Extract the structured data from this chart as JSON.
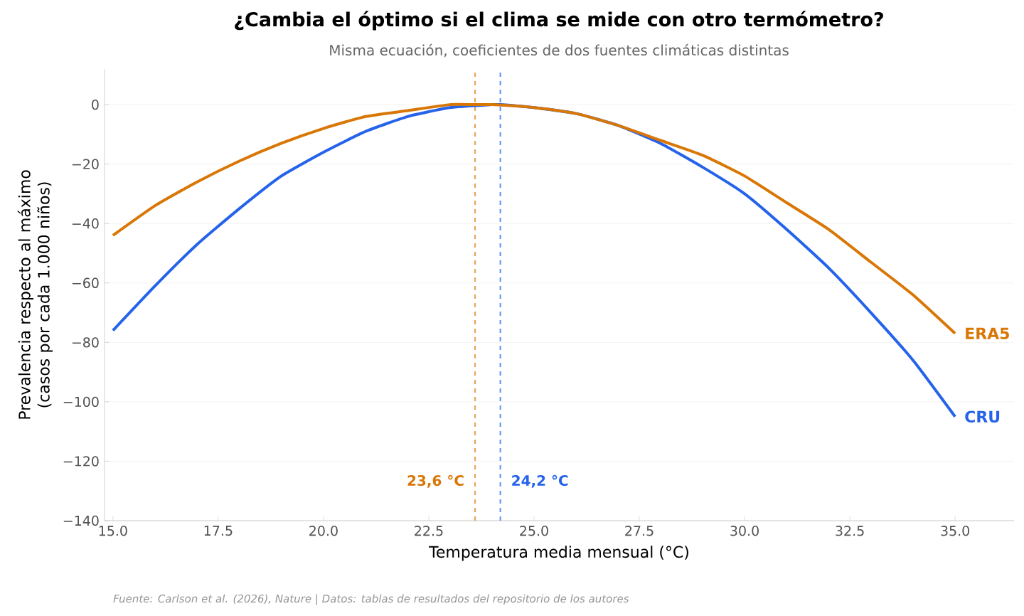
{
  "chart_data": {
    "type": "line",
    "title": "¿Cambia el óptimo si el clima se mide con otro termómetro?",
    "subtitle": "Misma ecuación, coeficientes de dos fuentes climáticas distintas",
    "xlabel": "Temperatura media mensual (°C)",
    "ylabel": "Prevalencia respecto al máximo (casos por cada 1.000 niños)",
    "annotations": [
      "Fuente: Carlson et al. (2026), Nature  |  Datos: tablas de resultados del repositorio de los autores"
    ],
    "series": [
      {
        "name": "CRU",
        "color": "#2563eb",
        "x": [
          15,
          16,
          17,
          18,
          19,
          20,
          21,
          22,
          23,
          24,
          24.2,
          25,
          26,
          27,
          28,
          29,
          30,
          31,
          32,
          33,
          34,
          35
        ],
        "values": [
          -76,
          -61,
          -47,
          -35,
          -24,
          -16,
          -9,
          -4,
          -1,
          0,
          0,
          -1,
          -3,
          -7,
          -13,
          -21,
          -30,
          -42,
          -55,
          -70,
          -86,
          -105
        ]
      },
      {
        "name": "ERA5",
        "color": "#d97706",
        "x": [
          15,
          16,
          17,
          18,
          19,
          20,
          21,
          22,
          23,
          23.6,
          24,
          25,
          26,
          27,
          28,
          29,
          30,
          31,
          32,
          33,
          34,
          35
        ],
        "values": [
          -44,
          -34,
          -26,
          -19,
          -13,
          -8,
          -4,
          -2,
          0,
          0,
          0,
          -1,
          -3,
          -7,
          -12,
          -17,
          -24,
          -33,
          -42,
          -53,
          -64,
          -77
        ]
      }
    ],
    "ref_lines": [
      {
        "axis": "x",
        "value": 23.6,
        "label": "23,6 °C",
        "color": "#e8a050",
        "line_style": "dashed"
      },
      {
        "axis": "x",
        "value": 24.2,
        "label": "24,2 °C",
        "color": "#5b8ff9",
        "line_style": "dashed"
      }
    ],
    "xlim": [
      14.8,
      36.4
    ],
    "ylim": [
      -140,
      12
    ],
    "xticks": [
      {
        "value": 15,
        "label": "15.0"
      },
      {
        "value": 17.5,
        "label": "17.5"
      },
      {
        "value": 20,
        "label": "20.0"
      },
      {
        "value": 22.5,
        "label": "22.5"
      },
      {
        "value": 25,
        "label": "25.0"
      },
      {
        "value": 27.5,
        "label": "27.5"
      },
      {
        "value": 30,
        "label": "30.0"
      },
      {
        "value": 32.5,
        "label": "32.5"
      },
      {
        "value": 35,
        "label": "35.0"
      }
    ],
    "yticks": [
      {
        "value": -140,
        "label": "−140"
      },
      {
        "value": -120,
        "label": "−120"
      },
      {
        "value": -100,
        "label": "−100"
      },
      {
        "value": -80,
        "label": "−80"
      },
      {
        "value": -60,
        "label": "−60"
      },
      {
        "value": -40,
        "label": "−40"
      },
      {
        "value": -20,
        "label": "−20"
      },
      0
    ],
    "grid": "y",
    "legend": false,
    "marker": "none",
    "line_style": "solid"
  }
}
